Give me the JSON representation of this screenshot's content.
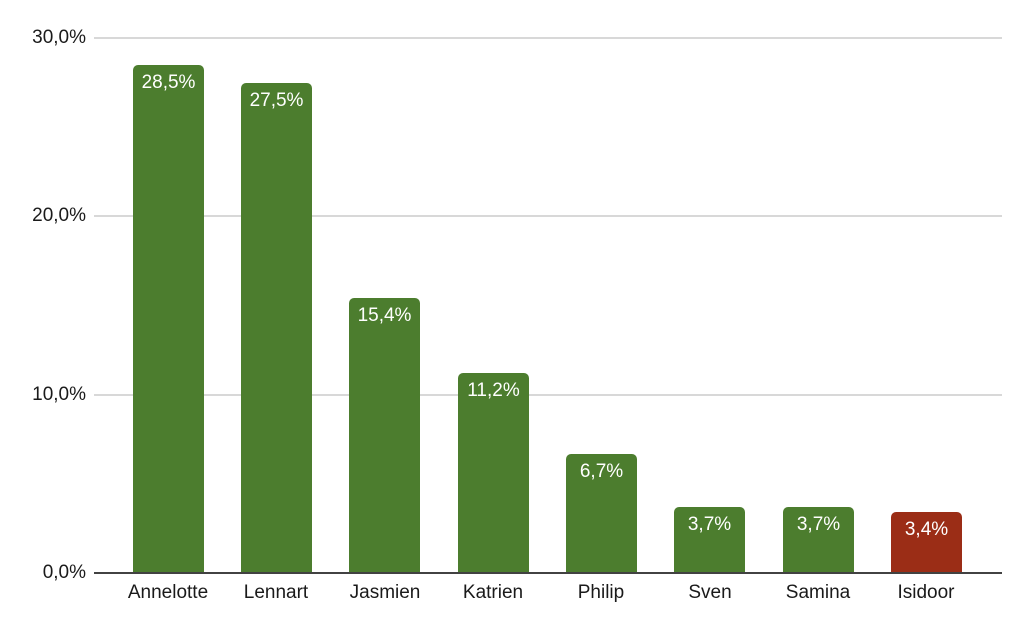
{
  "chart_data": {
    "type": "bar",
    "title": "",
    "categories": [
      "Annelotte",
      "Lennart",
      "Jasmien",
      "Katrien",
      "Philip",
      "Sven",
      "Samina",
      "Isidoor"
    ],
    "values": [
      28.5,
      27.5,
      15.4,
      11.2,
      6.7,
      3.7,
      3.7,
      3.4
    ],
    "value_labels": [
      "28,5%",
      "27,5%",
      "15,4%",
      "11,2%",
      "6,7%",
      "3,7%",
      "3,7%",
      "3,4%"
    ],
    "bar_colors": [
      "#4C7D2E",
      "#4C7D2E",
      "#4C7D2E",
      "#4C7D2E",
      "#4C7D2E",
      "#4C7D2E",
      "#4C7D2E",
      "#9B2D16"
    ],
    "y_axis": {
      "range": [
        0,
        30
      ],
      "ticks": [
        {
          "value": 0,
          "label": "0,0%"
        },
        {
          "value": 10,
          "label": "10,0%"
        },
        {
          "value": 20,
          "label": "20,0%"
        },
        {
          "value": 30,
          "label": "30,0%"
        }
      ]
    },
    "grid": true,
    "legend": "none",
    "xlabel": "",
    "ylabel": ""
  },
  "colors": {
    "bar_green": "#4C7D2E",
    "bar_red": "#9B2D16",
    "gridline": "#d8d8d8",
    "axis_line": "#424242",
    "axis_text": "#1a1a1a",
    "value_text": "#ffffff",
    "background": "#ffffff"
  }
}
